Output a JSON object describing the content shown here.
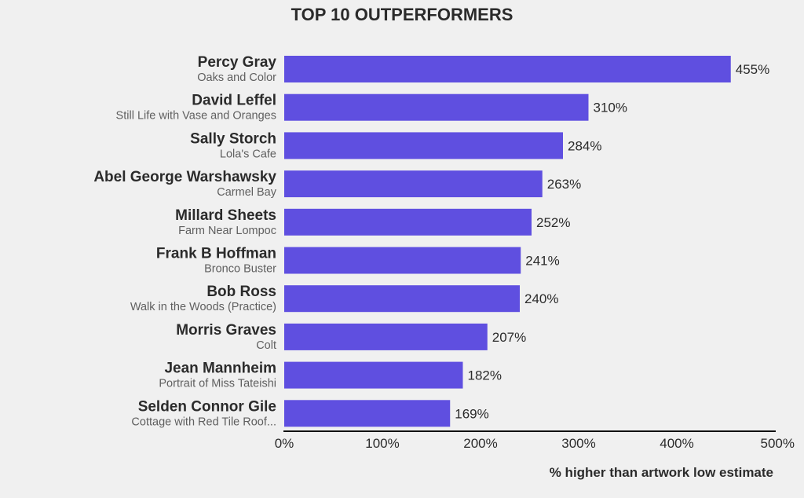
{
  "chart_data": {
    "type": "bar",
    "orientation": "horizontal",
    "title": "TOP 10 OUTPERFORMERS",
    "xlabel": "% higher than artwork low estimate",
    "ylabel": "",
    "xlim": [
      0,
      500
    ],
    "x_ticks": [
      0,
      100,
      200,
      300,
      400,
      500
    ],
    "x_tick_labels": [
      "0%",
      "100%",
      "200%",
      "300%",
      "400%",
      "500%"
    ],
    "grid": false,
    "bar_color": "#5f4fe0",
    "categories": [
      "Percy Gray",
      "David Leffel",
      "Sally Storch",
      "Abel George Warshawsky",
      "Millard Sheets",
      "Frank B Hoffman",
      "Bob Ross",
      "Morris Graves",
      "Jean Mannheim",
      "Selden Connor Gile"
    ],
    "subcategories": [
      "Oaks and Color",
      "Still Life with Vase and Oranges",
      "Lola's Cafe",
      "Carmel Bay",
      "Farm Near Lompoc",
      "Bronco Buster",
      "Walk in the Woods (Practice)",
      "Colt",
      "Portrait of Miss Tateishi",
      "Cottage with Red Tile Roof..."
    ],
    "values": [
      455,
      310,
      284,
      263,
      252,
      241,
      240,
      207,
      182,
      169
    ],
    "value_labels": [
      "455%",
      "310%",
      "284%",
      "263%",
      "252%",
      "241%",
      "240%",
      "207%",
      "182%",
      "169%"
    ]
  }
}
